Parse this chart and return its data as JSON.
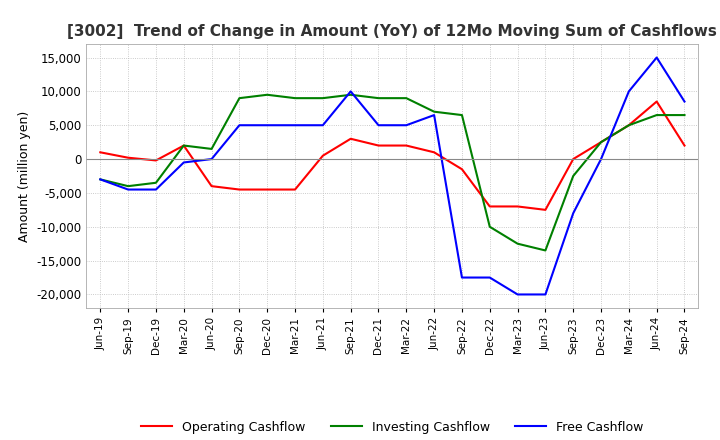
{
  "title": "[3002]  Trend of Change in Amount (YoY) of 12Mo Moving Sum of Cashflows",
  "ylabel": "Amount (million yen)",
  "ylim": [
    -22000,
    17000
  ],
  "yticks": [
    -20000,
    -15000,
    -10000,
    -5000,
    0,
    5000,
    10000,
    15000
  ],
  "x_labels": [
    "Jun-19",
    "Sep-19",
    "Dec-19",
    "Mar-20",
    "Jun-20",
    "Sep-20",
    "Dec-20",
    "Mar-21",
    "Jun-21",
    "Sep-21",
    "Dec-21",
    "Mar-22",
    "Jun-22",
    "Sep-22",
    "Dec-22",
    "Mar-23",
    "Jun-23",
    "Sep-23",
    "Dec-23",
    "Mar-24",
    "Jun-24",
    "Sep-24"
  ],
  "operating": [
    1000,
    200,
    -200,
    2000,
    -4000,
    -4500,
    -4500,
    -4500,
    500,
    3000,
    2000,
    2000,
    1000,
    -1500,
    -7000,
    -7000,
    -7500,
    0,
    2500,
    5000,
    8500,
    2000
  ],
  "investing": [
    -3000,
    -4000,
    -3500,
    2000,
    1500,
    9000,
    9500,
    9000,
    9000,
    9500,
    9000,
    9000,
    7000,
    6500,
    -10000,
    -12500,
    -13500,
    -2500,
    2500,
    5000,
    6500,
    6500
  ],
  "free": [
    -3000,
    -4500,
    -4500,
    -500,
    0,
    5000,
    5000,
    5000,
    5000,
    10000,
    5000,
    5000,
    6500,
    -17500,
    -17500,
    -20000,
    -20000,
    -8000,
    0,
    10000,
    15000,
    8500
  ],
  "operating_color": "#ff0000",
  "investing_color": "#008000",
  "free_color": "#0000ff",
  "background_color": "#ffffff",
  "grid_color": "#bbbbbb"
}
